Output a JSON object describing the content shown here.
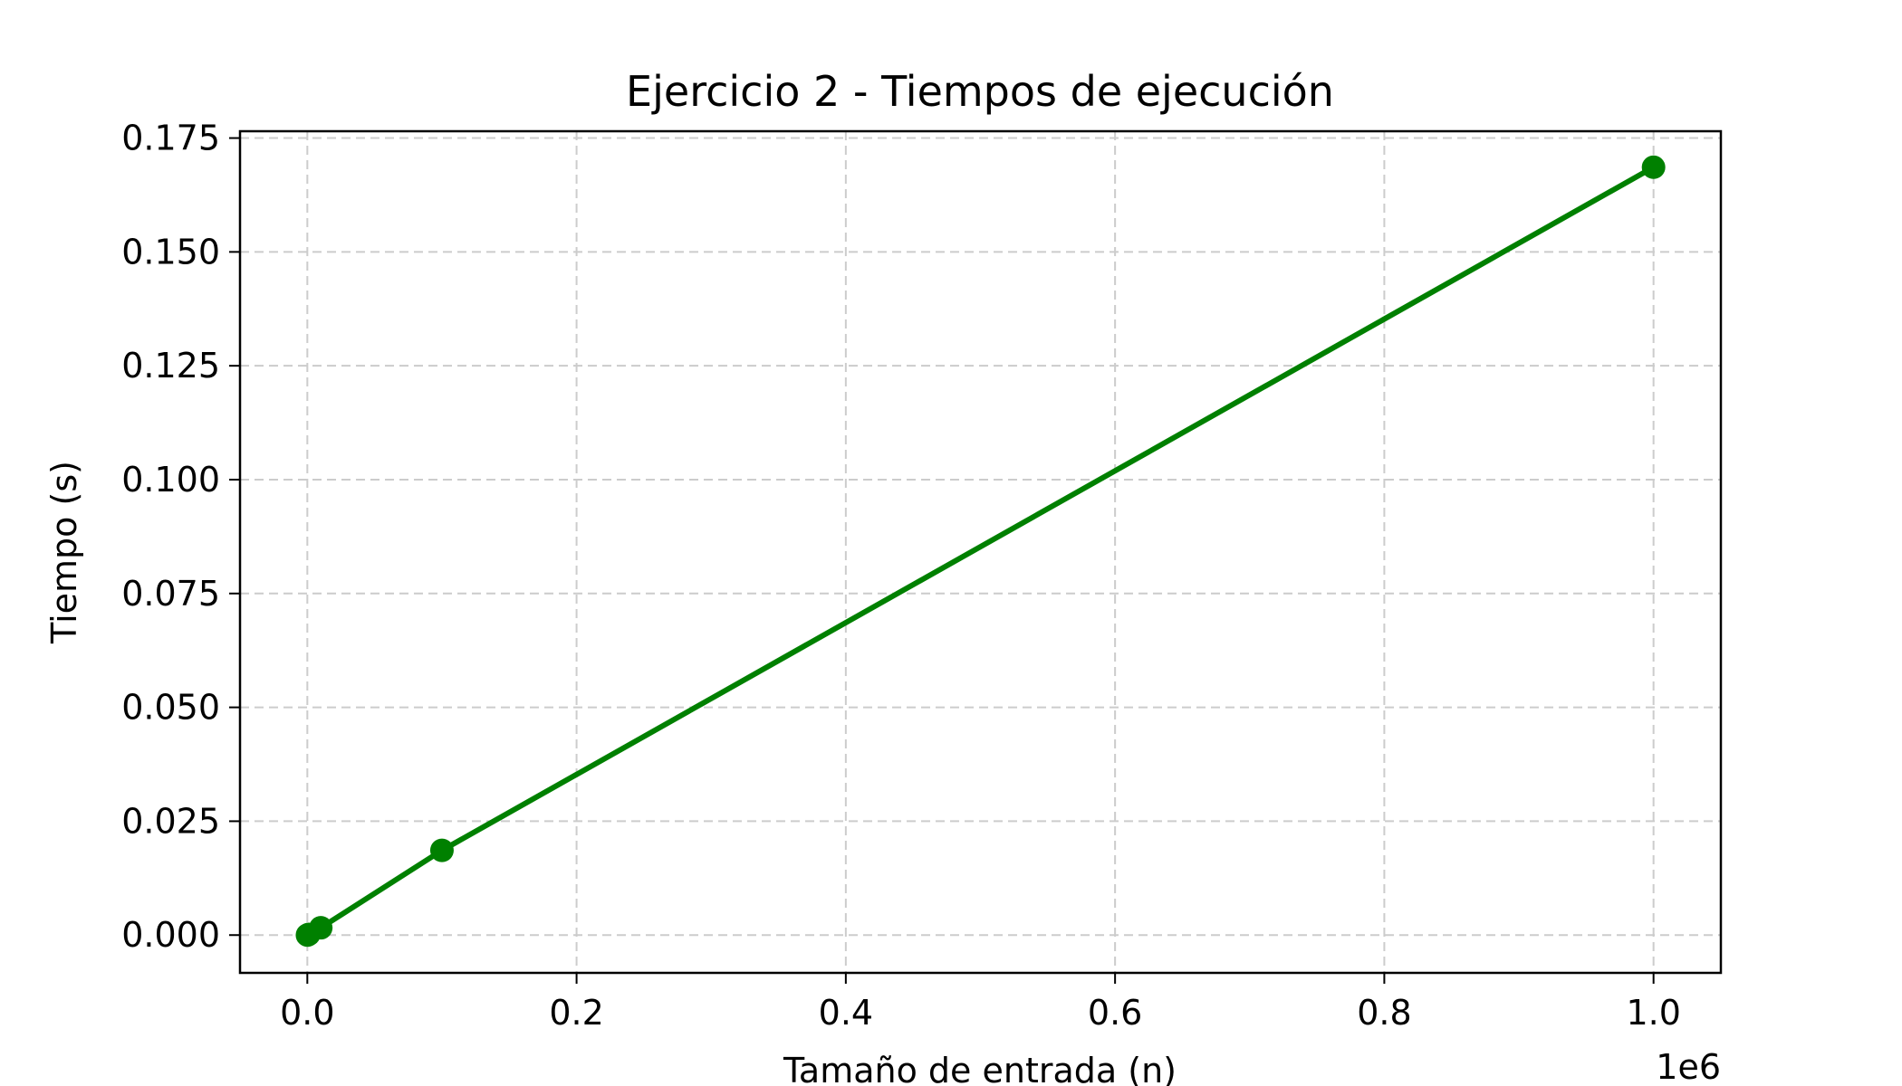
{
  "chart_data": {
    "type": "line",
    "title": "Ejercicio 2 - Tiempos de ejecución",
    "xlabel": "Tamaño de entrada (n)",
    "ylabel": "Tiempo (s)",
    "x_offset_label": "1e6",
    "xlim": [
      -50000,
      1050000
    ],
    "ylim": [
      -0.0083,
      0.1765
    ],
    "x_ticks": [
      0,
      200000,
      400000,
      600000,
      800000,
      1000000
    ],
    "x_tick_labels": [
      "0.0",
      "0.2",
      "0.4",
      "0.6",
      "0.8",
      "1.0"
    ],
    "y_ticks": [
      0,
      0.025,
      0.05,
      0.075,
      0.1,
      0.125,
      0.15,
      0.175
    ],
    "y_tick_labels": [
      "0.000",
      "0.025",
      "0.050",
      "0.075",
      "0.100",
      "0.125",
      "0.150",
      "0.175"
    ],
    "grid": true,
    "color": "#008000",
    "series": [
      {
        "x": [
          100,
          1000,
          10000,
          100000,
          1000000
        ],
        "y": [
          0.0,
          0.00015,
          0.0016,
          0.0186,
          0.1686
        ]
      }
    ]
  }
}
